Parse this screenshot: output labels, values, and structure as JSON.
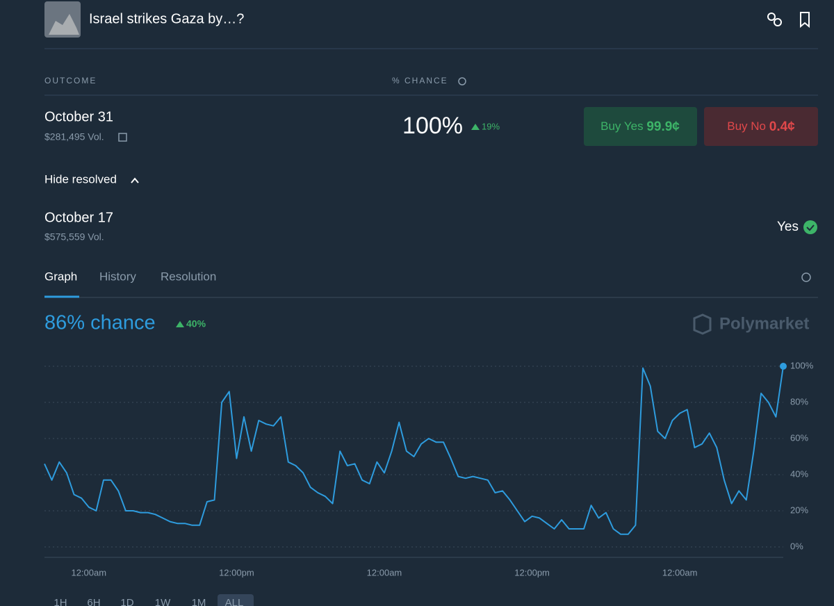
{
  "header": {
    "title": "Israel strikes Gaza by…?"
  },
  "table": {
    "columns": [
      "OUTCOME",
      "% CHANCE"
    ]
  },
  "outcomes": [
    {
      "name": "October 31",
      "volume": "$281,495 Vol.",
      "chance": "100%",
      "change": "19%",
      "buy_yes_label": "Buy Yes",
      "buy_yes_price": "99.9¢",
      "buy_no_label": "Buy No",
      "buy_no_price": "0.4¢"
    }
  ],
  "resolved_toggle": "Hide resolved",
  "resolved": [
    {
      "name": "October 17",
      "volume": "$575,559 Vol.",
      "result": "Yes"
    }
  ],
  "tabs": [
    "Graph",
    "History",
    "Resolution"
  ],
  "headline": {
    "chance": "86% chance",
    "change": "40%"
  },
  "brand": "Polymarket",
  "ranges": [
    "1H",
    "6H",
    "1D",
    "1W",
    "1M",
    "ALL"
  ],
  "chart_data": {
    "type": "line",
    "color": "#2e9cde",
    "grid": true,
    "categories": [
      null,
      null,
      null,
      null,
      null,
      null,
      "12:00am",
      null,
      null,
      null,
      null,
      null,
      null,
      null,
      null,
      null,
      null,
      null,
      null,
      null,
      null,
      null,
      null,
      null,
      null,
      null,
      "12:00pm",
      null,
      null,
      null,
      null,
      null,
      null,
      null,
      null,
      null,
      null,
      null,
      null,
      null,
      null,
      null,
      null,
      null,
      null,
      null,
      "12:00am",
      null,
      null,
      null,
      null,
      null,
      null,
      null,
      null,
      null,
      null,
      null,
      null,
      null,
      null,
      null,
      null,
      null,
      null,
      null,
      "12:00pm",
      null,
      null,
      null,
      null,
      null,
      null,
      null,
      null,
      null,
      null,
      null,
      null,
      null,
      null,
      null,
      null,
      null,
      null,
      null,
      "12:00am",
      null,
      null,
      null,
      null,
      null,
      null,
      null,
      null,
      null,
      null,
      null,
      null,
      null,
      null
    ],
    "values": [
      46,
      37,
      47,
      41,
      29,
      27,
      22,
      20,
      37,
      37,
      31,
      20,
      20,
      19,
      19,
      18,
      16,
      14,
      13,
      13,
      12,
      12,
      25,
      26,
      80,
      86,
      49,
      72,
      53,
      70,
      68,
      67,
      72,
      47,
      45,
      41,
      33,
      30,
      28,
      24,
      53,
      45,
      46,
      37,
      35,
      47,
      41,
      53,
      69,
      53,
      50,
      57,
      60,
      58,
      58,
      49,
      39,
      38,
      39,
      38,
      37,
      30,
      31,
      26,
      20,
      14,
      17,
      16,
      13,
      10,
      15,
      10,
      10,
      10,
      23,
      16,
      19,
      10,
      7,
      7,
      12,
      99,
      89,
      64,
      60,
      70,
      74,
      76,
      55,
      57,
      63,
      55,
      37,
      24,
      31,
      26,
      53,
      85,
      80,
      72,
      100
    ],
    "ylim": [
      0,
      100
    ],
    "yticks": [
      {
        "value": 0,
        "label": "0%"
      },
      {
        "value": 20,
        "label": "20%"
      },
      {
        "value": 40,
        "label": "40%"
      },
      {
        "value": 60,
        "label": "60%"
      },
      {
        "value": 80,
        "label": "80%"
      },
      {
        "value": 100,
        "label": "100%"
      }
    ]
  }
}
